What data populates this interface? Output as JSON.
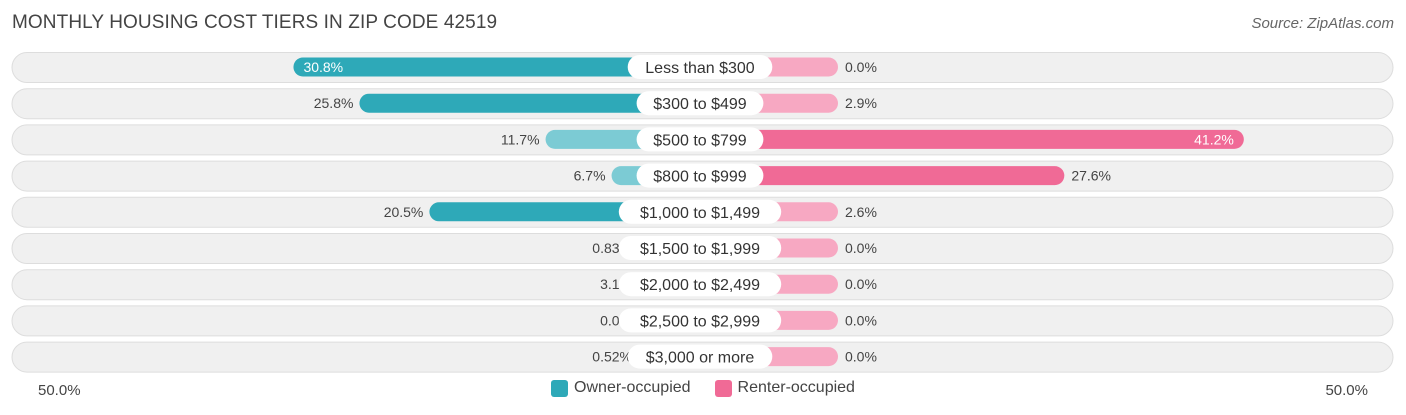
{
  "header": {
    "title": "MONTHLY HOUSING COST TIERS IN ZIP CODE 42519",
    "source": "Source: ZipAtlas.com"
  },
  "colors": {
    "owner_strong": "#2ea9b8",
    "owner_light": "#7ccbd4",
    "renter_strong": "#f06a96",
    "renter_light": "#f7a8c2",
    "track": "#f0f0f0",
    "track_border": "#dddddd"
  },
  "axis": {
    "left_label": "50.0%",
    "right_label": "50.0%"
  },
  "legend": {
    "owner": "Owner-occupied",
    "renter": "Renter-occupied"
  },
  "chart_data": {
    "type": "bar",
    "orientation": "horizontal-diverging",
    "title": "MONTHLY HOUSING COST TIERS IN ZIP CODE 42519",
    "xlim": [
      -50,
      50
    ],
    "categories": [
      "Less than $300",
      "$300 to $499",
      "$500 to $799",
      "$800 to $999",
      "$1,000 to $1,499",
      "$1,500 to $1,999",
      "$2,000 to $2,499",
      "$2,500 to $2,999",
      "$3,000 or more"
    ],
    "series": [
      {
        "name": "Owner-occupied",
        "values": [
          30.8,
          25.8,
          11.7,
          6.7,
          20.5,
          0.83,
          3.1,
          0.0,
          0.52
        ],
        "labels": [
          "30.8%",
          "25.8%",
          "11.7%",
          "6.7%",
          "20.5%",
          "0.83%",
          "3.1%",
          "0.0%",
          "0.52%"
        ]
      },
      {
        "name": "Renter-occupied",
        "values": [
          0.0,
          2.9,
          41.2,
          27.6,
          2.6,
          0.0,
          0.0,
          0.0,
          0.0
        ],
        "labels": [
          "0.0%",
          "2.9%",
          "41.2%",
          "27.6%",
          "2.6%",
          "0.0%",
          "0.0%",
          "0.0%",
          "0.0%"
        ]
      }
    ],
    "legend_position": "bottom-center"
  }
}
